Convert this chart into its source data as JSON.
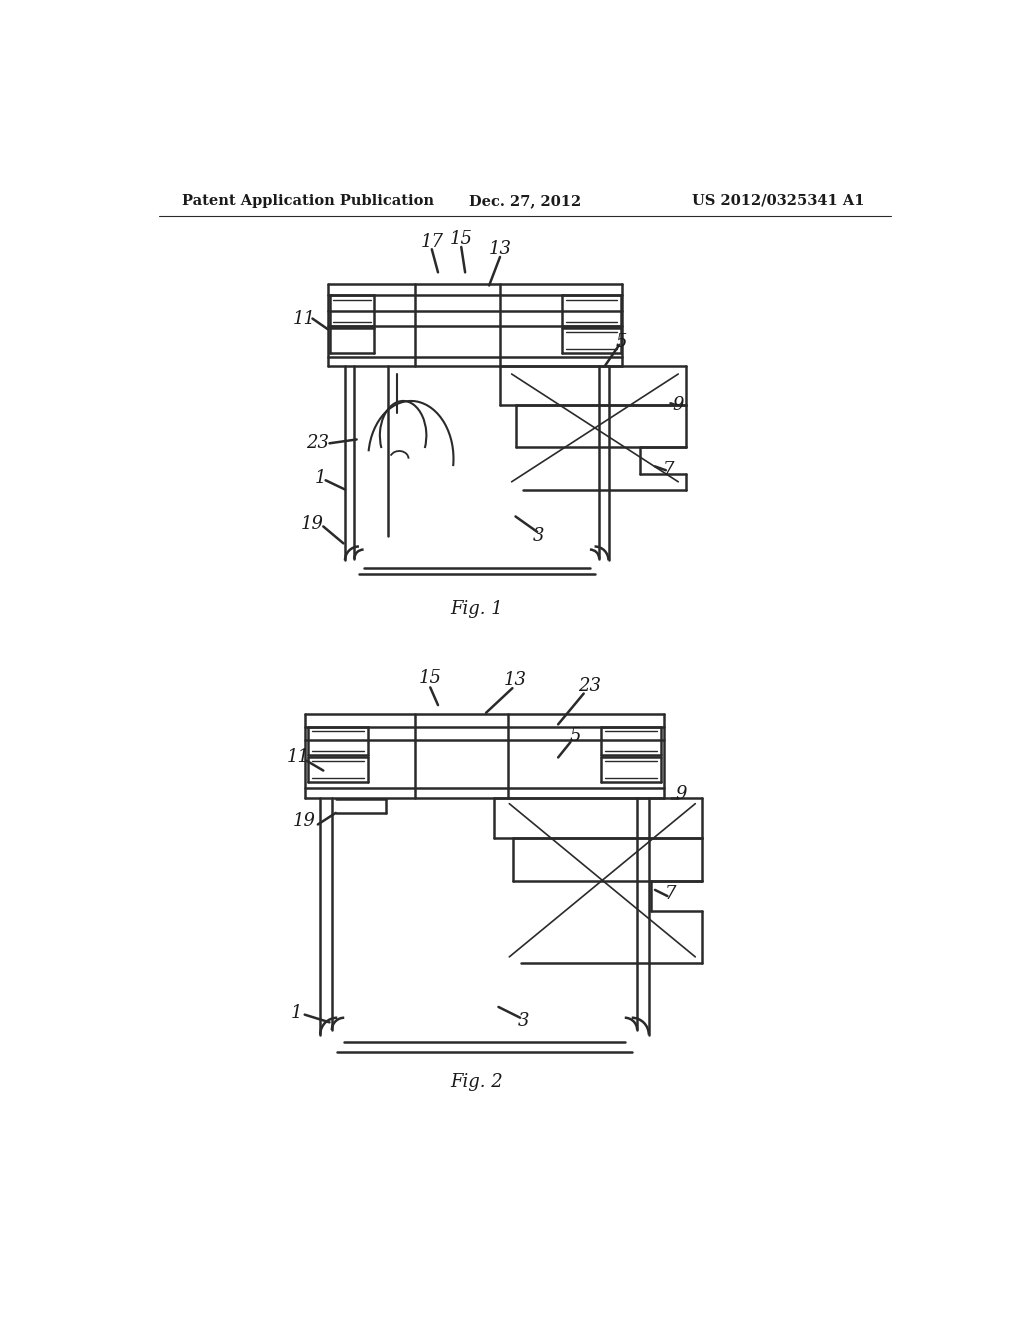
{
  "background_color": "#ffffff",
  "header_left": "Patent Application Publication",
  "header_center": "Dec. 27, 2012",
  "header_right": "US 2012/0325341 A1",
  "fig1_label": "Fig. 1",
  "fig2_label": "Fig. 2",
  "line_color": "#2a2a2a",
  "text_color": "#1a1a1a",
  "header_font_size": 10.5,
  "fig_label_font_size": 13
}
